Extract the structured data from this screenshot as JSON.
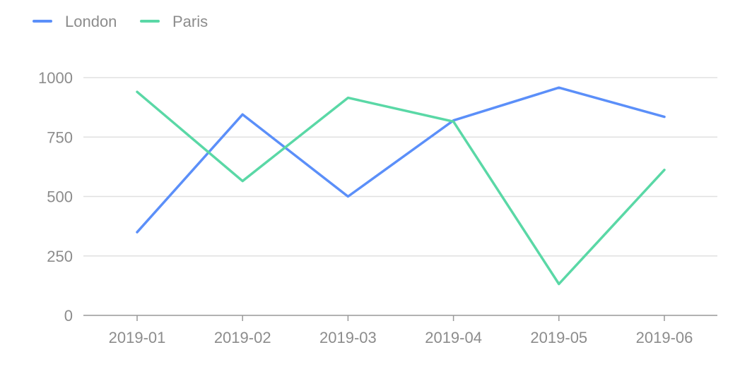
{
  "chart_data": {
    "type": "line",
    "title": "",
    "xlabel": "",
    "ylabel": "",
    "categories": [
      "2019-01",
      "2019-02",
      "2019-03",
      "2019-04",
      "2019-05",
      "2019-06"
    ],
    "yticks": [
      "0",
      "250",
      "500",
      "750",
      "1000"
    ],
    "ylim": [
      0,
      1000
    ],
    "grid": "horizontal",
    "legend_position": "top-left",
    "series": [
      {
        "name": "London",
        "color": "#5b8ff9",
        "values": [
          350,
          845,
          500,
          820,
          958,
          835
        ]
      },
      {
        "name": "Paris",
        "color": "#5ad8a6",
        "values": [
          940,
          565,
          915,
          815,
          132,
          612
        ]
      }
    ]
  }
}
